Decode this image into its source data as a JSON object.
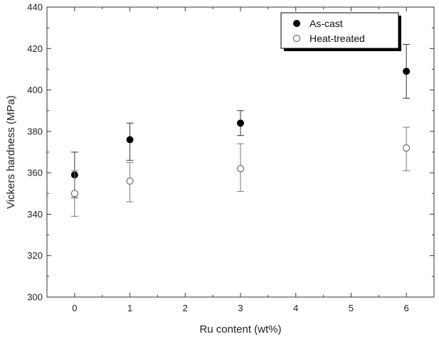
{
  "chart_data": {
    "type": "scatter",
    "xlabel": "Ru content (wt%)",
    "ylabel": "Vickers hardness (MPa)",
    "x_tick_labels": [
      "0",
      "1",
      "2",
      "3",
      "4",
      "5",
      "6"
    ],
    "y_tick_labels": [
      "300",
      "320",
      "340",
      "360",
      "380",
      "400",
      "420",
      "440"
    ],
    "ylim": [
      300,
      440
    ],
    "xlim": [
      -0.5,
      6.5
    ],
    "grid": false,
    "legend_position": "top-right",
    "series": [
      {
        "name": "As-cast",
        "marker": "filled-circle",
        "color": "#000000",
        "points": [
          {
            "x": 0,
            "y": 359,
            "err_low": 348,
            "err_high": 370
          },
          {
            "x": 1,
            "y": 376,
            "err_low": 366,
            "err_high": 384
          },
          {
            "x": 3,
            "y": 384,
            "err_low": 378,
            "err_high": 390
          },
          {
            "x": 6,
            "y": 409,
            "err_low": 396,
            "err_high": 422
          }
        ]
      },
      {
        "name": "Heat-treated",
        "marker": "open-circle",
        "color": "#555555",
        "points": [
          {
            "x": 0,
            "y": 350,
            "err_low": 339,
            "err_high": 361
          },
          {
            "x": 1,
            "y": 356,
            "err_low": 346,
            "err_high": 365
          },
          {
            "x": 3,
            "y": 362,
            "err_low": 351,
            "err_high": 374
          },
          {
            "x": 6,
            "y": 372,
            "err_low": 361,
            "err_high": 382
          }
        ]
      }
    ]
  }
}
